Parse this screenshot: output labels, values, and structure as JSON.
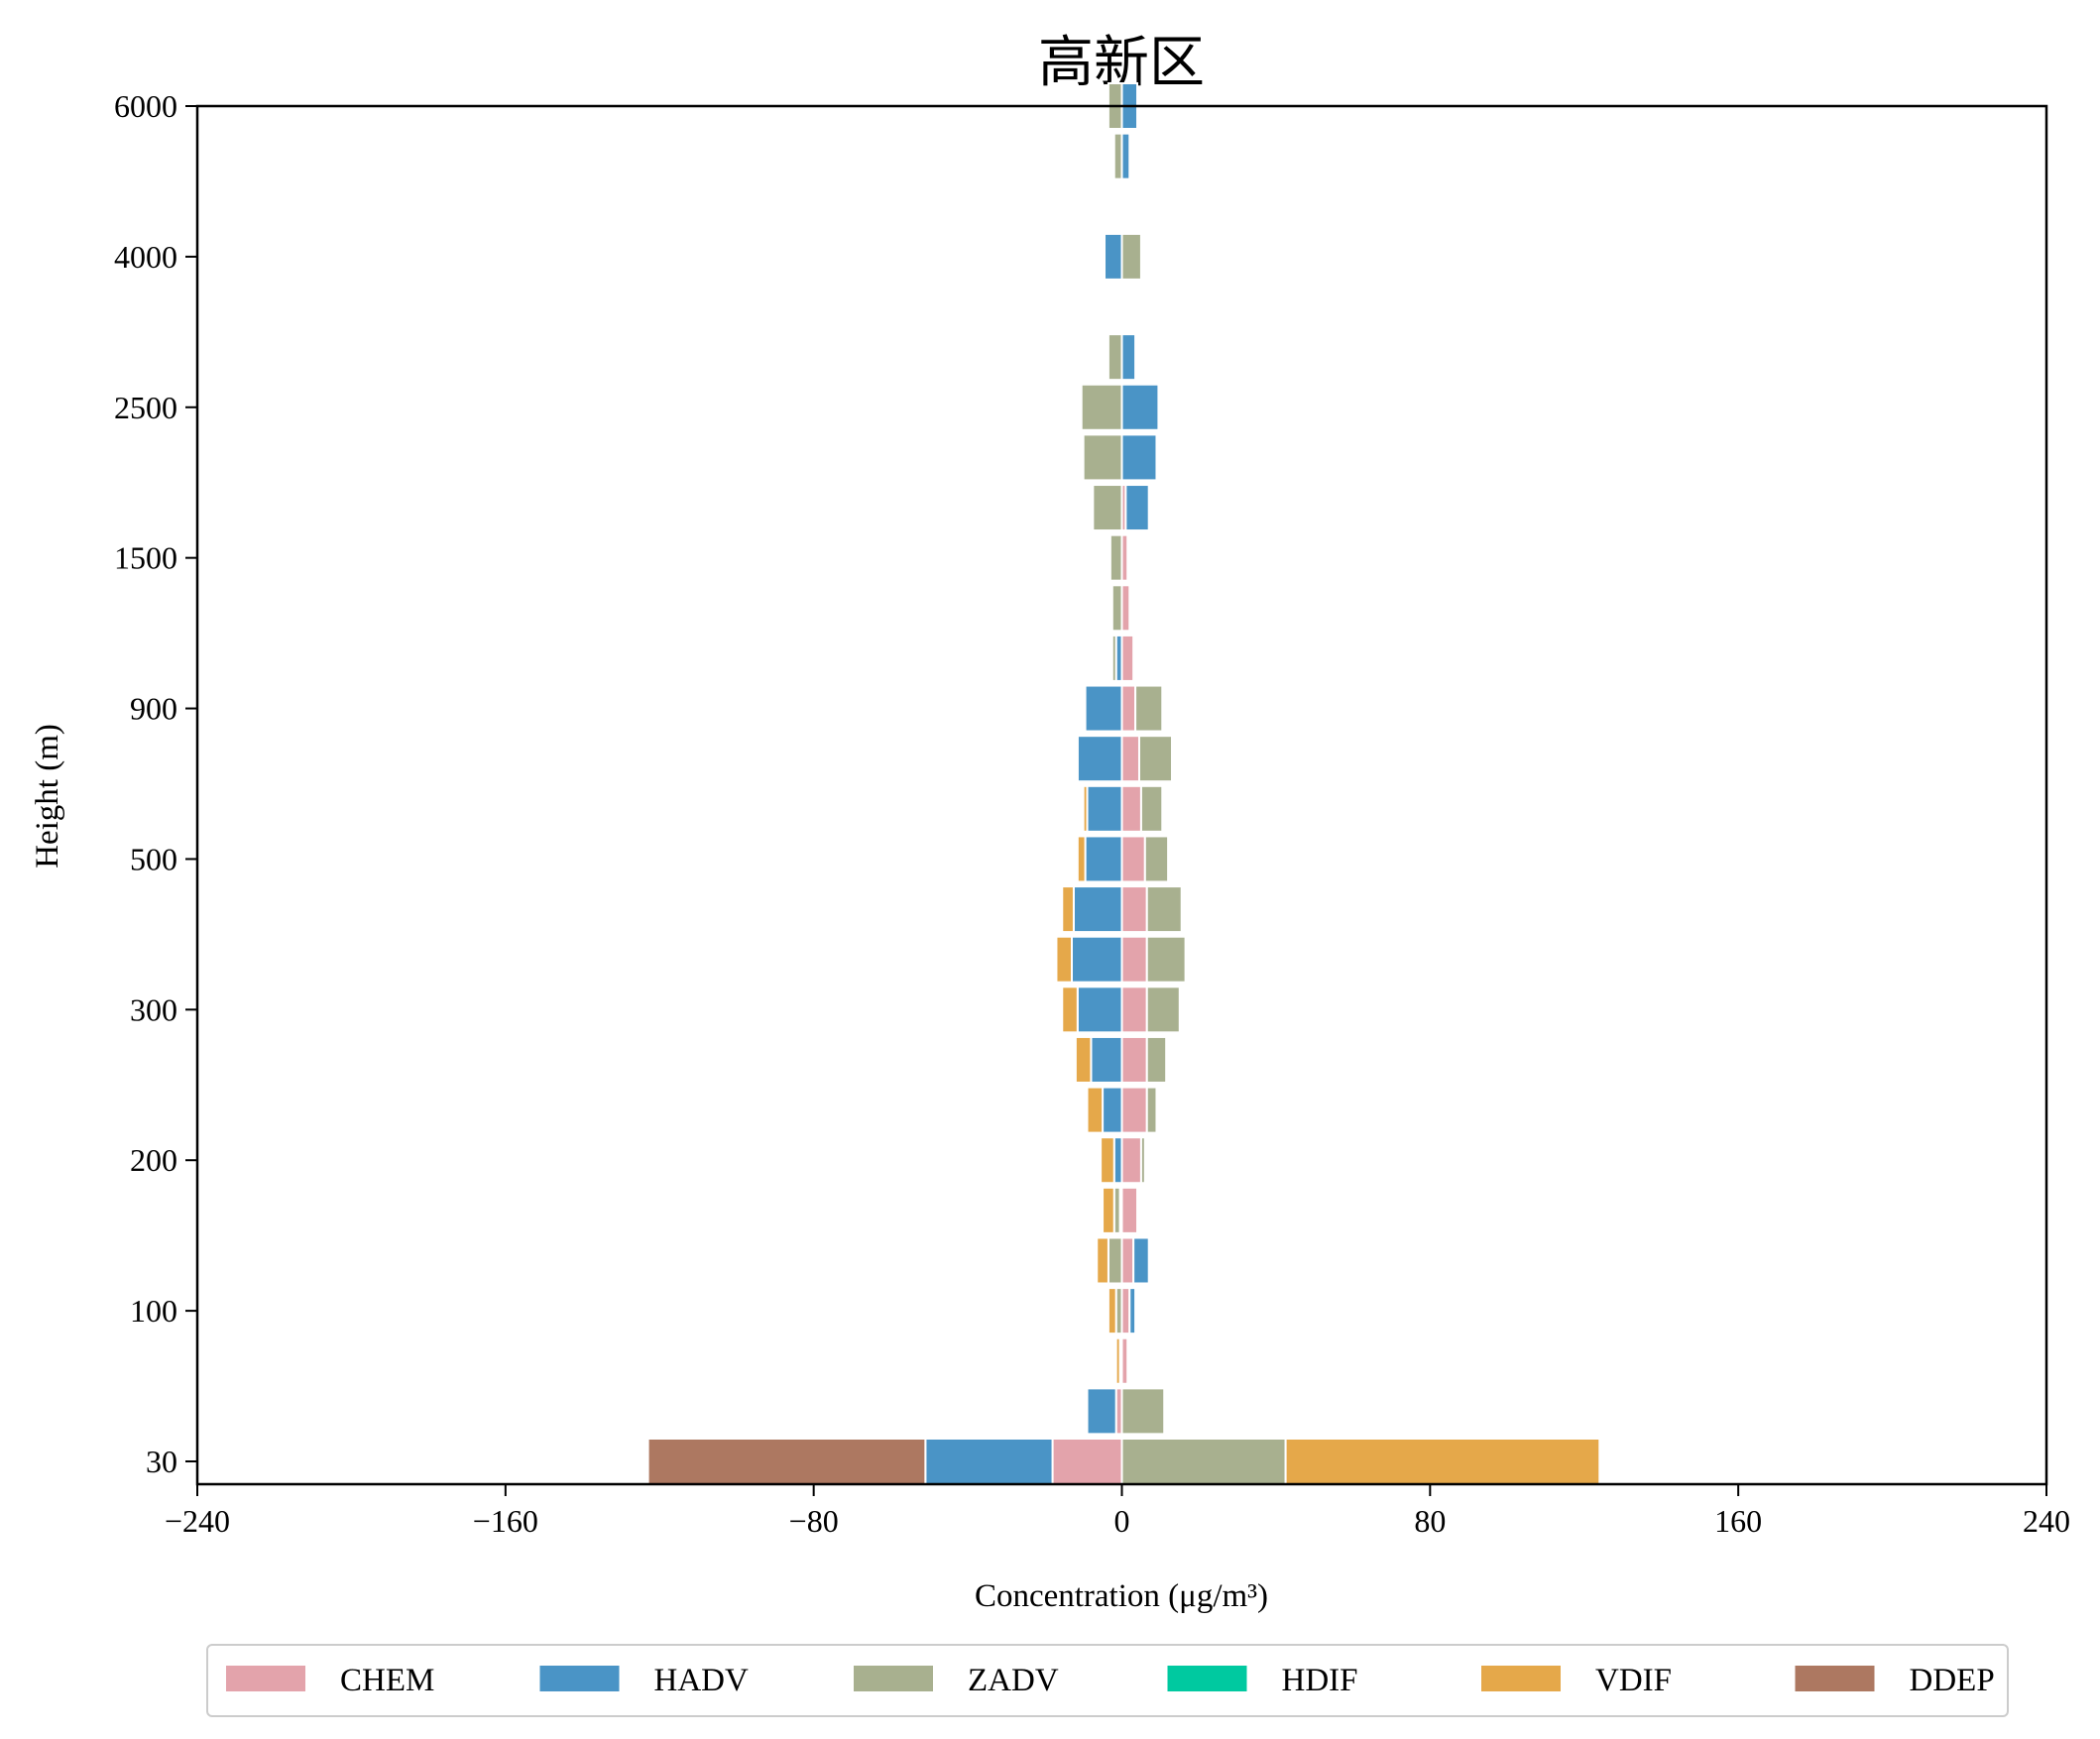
{
  "chart_data": {
    "type": "bar",
    "orientation": "horizontal-stacked-diverging",
    "title": "高新区",
    "xlabel": "Concentration (μg/m³)",
    "ylabel": "Height (m)",
    "xlim": [
      -240,
      240
    ],
    "xticks": [
      "−240",
      "−160",
      "−80",
      "0",
      "80",
      "160",
      "240"
    ],
    "xtick_values": [
      -240,
      -160,
      -80,
      0,
      80,
      160,
      240
    ],
    "ytick_labels": [
      "30",
      "100",
      "200",
      "300",
      "500",
      "900",
      "1500",
      "2500",
      "4000",
      "6000"
    ],
    "ytick_levels": [
      0,
      3,
      6,
      9,
      12,
      15,
      18,
      21,
      24,
      27
    ],
    "grid": false,
    "legend_position": "bottom",
    "series": [
      {
        "name": "CHEM",
        "color": "#e3a3ab"
      },
      {
        "name": "HADV",
        "color": "#4a94c6"
      },
      {
        "name": "ZADV",
        "color": "#a8b08f"
      },
      {
        "name": "HDIF",
        "color": "#00c9a0"
      },
      {
        "name": "VDIF",
        "color": "#e5a84a"
      },
      {
        "name": "DDEP",
        "color": "#ad7861"
      }
    ],
    "levels": [
      {
        "level": 0,
        "CHEM": -18,
        "HADV": -33,
        "ZADV": 42.5,
        "HDIF": 0,
        "VDIF": 81.5,
        "DDEP": -72
      },
      {
        "level": 1,
        "CHEM": -1.5,
        "HADV": -7.5,
        "ZADV": 11,
        "HDIF": 0,
        "VDIF": 0,
        "DDEP": 0
      },
      {
        "level": 2,
        "CHEM": 1.5,
        "HADV": -0.5,
        "ZADV": 0.5,
        "HDIF": 0,
        "VDIF": -1,
        "DDEP": 0
      },
      {
        "level": 3,
        "CHEM": 2,
        "HADV": 1.5,
        "ZADV": -1.5,
        "HDIF": 0,
        "VDIF": -2,
        "DDEP": 0
      },
      {
        "level": 4,
        "CHEM": 3,
        "HADV": 4,
        "ZADV": -3.5,
        "HDIF": 0,
        "VDIF": -3,
        "DDEP": 0
      },
      {
        "level": 5,
        "CHEM": 4,
        "HADV": -0.5,
        "ZADV": -1.5,
        "HDIF": 0,
        "VDIF": -3,
        "DDEP": 0
      },
      {
        "level": 6,
        "CHEM": 5,
        "HADV": -2,
        "ZADV": 1,
        "HDIF": 0,
        "VDIF": -3.5,
        "DDEP": 0
      },
      {
        "level": 7,
        "CHEM": 6.5,
        "HADV": -5,
        "ZADV": 2.5,
        "HDIF": 0,
        "VDIF": -4,
        "DDEP": 0
      },
      {
        "level": 8,
        "CHEM": 6.5,
        "HADV": -8,
        "ZADV": 5,
        "HDIF": 0,
        "VDIF": -4,
        "DDEP": 0
      },
      {
        "level": 9,
        "CHEM": 6.5,
        "HADV": -11.5,
        "ZADV": 8.5,
        "HDIF": 0,
        "VDIF": -4,
        "DDEP": 0
      },
      {
        "level": 10,
        "CHEM": 6.5,
        "HADV": -13,
        "ZADV": 10,
        "HDIF": 0,
        "VDIF": -4,
        "DDEP": 0
      },
      {
        "level": 11,
        "CHEM": 6.5,
        "HADV": -12.5,
        "ZADV": 9,
        "HDIF": 0,
        "VDIF": -3,
        "DDEP": 0
      },
      {
        "level": 12,
        "CHEM": 6,
        "HADV": -9.5,
        "ZADV": 6,
        "HDIF": 0,
        "VDIF": -2,
        "DDEP": 0
      },
      {
        "level": 13,
        "CHEM": 5,
        "HADV": -9,
        "ZADV": 5.5,
        "HDIF": 0,
        "VDIF": -1,
        "DDEP": 0
      },
      {
        "level": 14,
        "CHEM": 4.5,
        "HADV": -11.5,
        "ZADV": 8.5,
        "HDIF": 0,
        "VDIF": -0.5,
        "DDEP": 0
      },
      {
        "level": 15,
        "CHEM": 3.5,
        "HADV": -9.5,
        "ZADV": 7,
        "HDIF": 0,
        "VDIF": 0,
        "DDEP": 0
      },
      {
        "level": 16,
        "CHEM": 3,
        "HADV": -1.5,
        "ZADV": -1,
        "HDIF": 0,
        "VDIF": 0,
        "DDEP": 0
      },
      {
        "level": 17,
        "CHEM": 2,
        "HADV": 0,
        "ZADV": -2.5,
        "HDIF": 0,
        "VDIF": 0,
        "DDEP": 0
      },
      {
        "level": 18,
        "CHEM": 1.5,
        "HADV": 0.5,
        "ZADV": -3,
        "HDIF": 0,
        "VDIF": 0,
        "DDEP": 0
      },
      {
        "level": 19,
        "CHEM": 1,
        "HADV": 6,
        "ZADV": -7.5,
        "HDIF": 0,
        "VDIF": 0,
        "DDEP": 0
      },
      {
        "level": 20,
        "CHEM": 0,
        "HADV": 9,
        "ZADV": -10,
        "HDIF": 0,
        "VDIF": 0,
        "DDEP": 0
      },
      {
        "level": 21,
        "CHEM": 0,
        "HADV": 9.5,
        "ZADV": -10.5,
        "HDIF": 0,
        "VDIF": 0,
        "DDEP": 0
      },
      {
        "level": 22,
        "CHEM": 0,
        "HADV": 3.5,
        "ZADV": -3.5,
        "HDIF": 0,
        "VDIF": 0,
        "DDEP": 0
      },
      {
        "level": 23,
        "CHEM": 0,
        "HADV": -0.5,
        "ZADV": 0.5,
        "HDIF": 0,
        "VDIF": 0,
        "DDEP": 0
      },
      {
        "level": 24,
        "CHEM": 0,
        "HADV": -4.5,
        "ZADV": 5,
        "HDIF": 0,
        "VDIF": 0,
        "DDEP": 0
      },
      {
        "level": 26,
        "CHEM": 0,
        "HADV": 2,
        "ZADV": -2,
        "HDIF": 0,
        "VDIF": 0,
        "DDEP": 0
      },
      {
        "level": 27,
        "CHEM": 0,
        "HADV": 4,
        "ZADV": -3.5,
        "HDIF": 0,
        "VDIF": 0,
        "DDEP": 0
      }
    ]
  }
}
